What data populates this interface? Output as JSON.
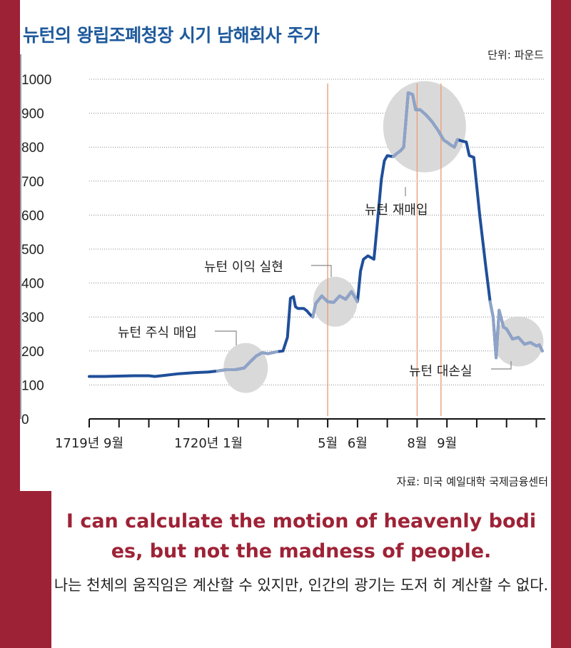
{
  "chart_data": {
    "type": "line",
    "title": "뉴턴의 왕립조폐청장 시기 남해회사 주가",
    "unit": "단위: 파운드",
    "source": "자료: 미국 예일대학 국제금융센터",
    "ylim": [
      0,
      1000
    ],
    "y_ticks": [
      "1000",
      "900",
      "800",
      "700",
      "600",
      "500",
      "400",
      "300",
      "200",
      "100",
      "0"
    ],
    "x_tick_labels": [
      {
        "label": "1719년 9월",
        "x": 0
      },
      {
        "label": "1720년 1월",
        "x": 4
      },
      {
        "label": "5월",
        "x": 8
      },
      {
        "label": "6월",
        "x": 9
      },
      {
        "label": "8월",
        "x": 11
      },
      {
        "label": "9월",
        "x": 12
      }
    ],
    "xlim": [
      0,
      15.3
    ],
    "x_minor_ticks": [
      0,
      1,
      2,
      3,
      4,
      5,
      6,
      7,
      8,
      9,
      10,
      11,
      12,
      13,
      14,
      15
    ],
    "vertical_lines": [
      8,
      11,
      11.8
    ],
    "grid": true,
    "line_color": "#1f4f9a",
    "highlight_color": "#8fa3c7",
    "series": [
      {
        "points": [
          [
            0.0,
            125
          ],
          [
            0.5,
            125
          ],
          [
            1.0,
            126
          ],
          [
            1.5,
            127
          ],
          [
            2.0,
            127
          ],
          [
            2.2,
            125
          ],
          [
            2.5,
            128
          ],
          [
            3.0,
            133
          ],
          [
            3.5,
            136
          ],
          [
            4.0,
            138
          ],
          [
            4.3,
            141
          ],
          [
            4.6,
            145
          ],
          [
            4.9,
            145
          ],
          [
            5.2,
            150
          ],
          [
            5.4,
            168
          ],
          [
            5.6,
            185
          ],
          [
            5.8,
            195
          ],
          [
            6.0,
            192
          ],
          [
            6.3,
            198
          ],
          [
            6.5,
            200
          ],
          [
            6.65,
            240
          ],
          [
            6.75,
            355
          ],
          [
            6.85,
            360
          ],
          [
            6.92,
            330
          ],
          [
            7.0,
            325
          ],
          [
            7.2,
            325
          ],
          [
            7.3,
            318
          ],
          [
            7.4,
            308
          ],
          [
            7.5,
            300
          ],
          [
            7.6,
            340
          ],
          [
            7.8,
            362
          ],
          [
            8.0,
            345
          ],
          [
            8.2,
            343
          ],
          [
            8.4,
            362
          ],
          [
            8.6,
            352
          ],
          [
            8.8,
            375
          ],
          [
            8.9,
            360
          ],
          [
            9.0,
            345
          ],
          [
            9.1,
            435
          ],
          [
            9.2,
            470
          ],
          [
            9.35,
            480
          ],
          [
            9.55,
            470
          ],
          [
            9.65,
            560
          ],
          [
            9.8,
            705
          ],
          [
            9.9,
            760
          ],
          [
            10.0,
            775
          ],
          [
            10.2,
            772
          ],
          [
            10.3,
            780
          ],
          [
            10.45,
            790
          ],
          [
            10.55,
            800
          ],
          [
            10.7,
            960
          ],
          [
            10.85,
            955
          ],
          [
            10.95,
            910
          ],
          [
            11.1,
            910
          ],
          [
            11.3,
            895
          ],
          [
            11.5,
            875
          ],
          [
            11.7,
            850
          ],
          [
            11.9,
            820
          ],
          [
            12.0,
            815
          ],
          [
            12.15,
            805
          ],
          [
            12.25,
            800
          ],
          [
            12.35,
            822
          ],
          [
            12.5,
            818
          ],
          [
            12.65,
            815
          ],
          [
            12.75,
            775
          ],
          [
            12.9,
            770
          ],
          [
            13.1,
            600
          ],
          [
            13.3,
            450
          ],
          [
            13.45,
            345
          ],
          [
            13.55,
            300
          ],
          [
            13.65,
            180
          ],
          [
            13.75,
            320
          ],
          [
            13.9,
            270
          ],
          [
            14.0,
            265
          ],
          [
            14.2,
            235
          ],
          [
            14.4,
            240
          ],
          [
            14.6,
            220
          ],
          [
            14.8,
            225
          ],
          [
            15.0,
            215
          ],
          [
            15.1,
            218
          ],
          [
            15.2,
            200
          ]
        ]
      }
    ],
    "highlight_segments": [
      [
        4.2,
        6.3
      ],
      [
        7.5,
        9.0
      ],
      [
        10.1,
        12.4
      ],
      [
        13.4,
        15.3
      ]
    ],
    "annotations": [
      {
        "label": "뉴턴 주식 매입",
        "at": [
          4.9,
          150
        ]
      },
      {
        "label": "뉴턴 이익 실현",
        "at": [
          8.3,
          365
        ]
      },
      {
        "label": "뉴턴 재매입",
        "at": [
          11.0,
          865
        ]
      },
      {
        "label": "뉴턴 대손실",
        "at": [
          14.2,
          230
        ]
      }
    ]
  },
  "quote": {
    "english": "I can calculate the motion of heavenly bodi es, but not the madness of people.",
    "korean": "나는 천체의 움직임은 계산할 수 있지만, 인간의 광기는 도저 히 계산할 수 없다."
  },
  "colors": {
    "frame": "#9e2236",
    "title": "#1f5a9c",
    "vline": "#e8a07a",
    "circle": "#d9d9d9"
  }
}
